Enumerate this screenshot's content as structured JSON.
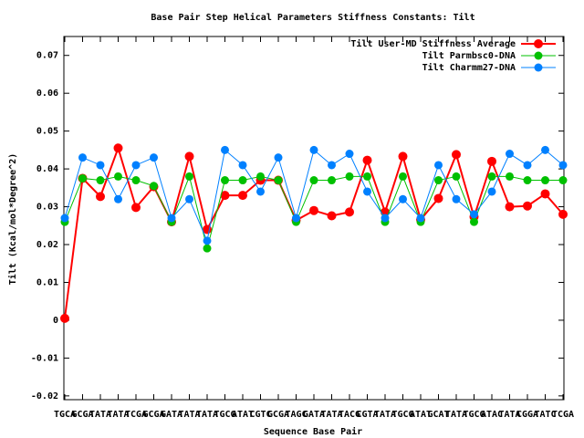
{
  "chart_data": {
    "type": "line",
    "title": "Base Pair Step Helical Parameters Stiffness Constants: Tilt",
    "x_label": "Sequence Base Pair",
    "y_label": "Tilt (Kcal/mol*Degree^2)",
    "categories": [
      "TGCA",
      "GCGA",
      "TATA",
      "TATA",
      "TCGA",
      "GCGA",
      "GATA",
      "TATA",
      "TATA",
      "TGCG",
      "ATAT",
      "CGTC",
      "GCGA",
      "TAGC",
      "GATA",
      "TATA",
      "TACG",
      "CGTA",
      "TATA",
      "TGCG",
      "ATAT",
      "GCAT",
      "TATA",
      "TGCG",
      "ATAC",
      "TATA",
      "CGGA",
      "TATC",
      "TCGA"
    ],
    "series": [
      {
        "name": "Tilt User-MD Stiffness Average",
        "color": "#ff0000",
        "values": [
          0.0005,
          0.0375,
          0.0327,
          0.0455,
          0.0298,
          0.0353,
          0.026,
          0.0433,
          0.024,
          0.033,
          0.033,
          0.037,
          0.037,
          0.0264,
          0.029,
          0.0276,
          0.0286,
          0.0423,
          0.0286,
          0.0433,
          0.0266,
          0.0322,
          0.0438,
          0.0273,
          0.042,
          0.03,
          0.0302,
          0.0334,
          0.028
        ]
      },
      {
        "name": "Tilt Parmbsc0-DNA",
        "color": "#00c000",
        "values": [
          0.026,
          0.0375,
          0.037,
          0.038,
          0.037,
          0.0355,
          0.026,
          0.038,
          0.019,
          0.037,
          0.037,
          0.038,
          0.037,
          0.026,
          0.037,
          0.037,
          0.038,
          0.038,
          0.026,
          0.038,
          0.026,
          0.037,
          0.038,
          0.026,
          0.038,
          0.038,
          0.037,
          0.037,
          0.037
        ]
      },
      {
        "name": "Tilt Charmm27-DNA",
        "color": "#0080ff",
        "values": [
          0.027,
          0.043,
          0.041,
          0.032,
          0.041,
          0.043,
          0.027,
          0.032,
          0.021,
          0.045,
          0.041,
          0.034,
          0.043,
          0.027,
          0.045,
          0.041,
          0.044,
          0.034,
          0.027,
          0.032,
          0.027,
          0.041,
          0.032,
          0.028,
          0.034,
          0.044,
          0.041,
          0.045,
          0.041
        ]
      }
    ],
    "ylim": [
      -0.021,
      0.075
    ],
    "yticks": [
      -0.02,
      -0.01,
      0,
      0.01,
      0.02,
      0.03,
      0.04,
      0.05,
      0.06,
      0.07
    ],
    "legend": "upper right"
  }
}
